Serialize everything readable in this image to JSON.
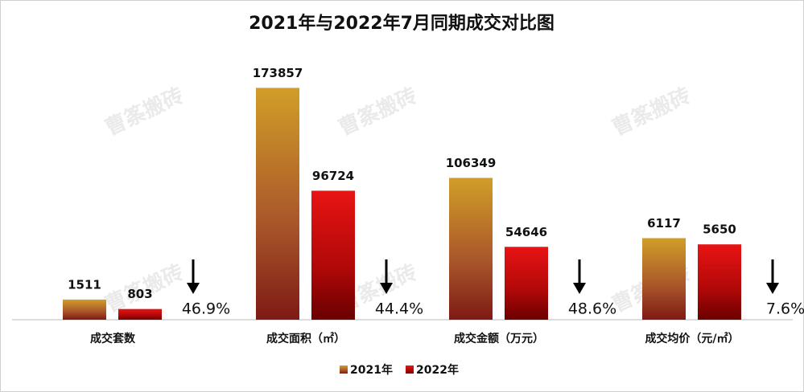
{
  "chart_data": {
    "type": "bar",
    "title": "2021年与2022年7月同期成交对比图",
    "categories": [
      "成交套数",
      "成交面积（㎡）",
      "成交金额（万元）",
      "成交均价（元/㎡）"
    ],
    "series": [
      {
        "name": "2021年",
        "color": "#c8962a",
        "values": [
          1511,
          173857,
          106349,
          6117
        ]
      },
      {
        "name": "2022年",
        "color": "#e31212",
        "values": [
          803,
          96724,
          54646,
          5650
        ]
      }
    ],
    "change_labels": [
      "46.9%",
      "44.4%",
      "48.6%",
      "7.6%"
    ],
    "watermark": "曹筿搬砖"
  }
}
